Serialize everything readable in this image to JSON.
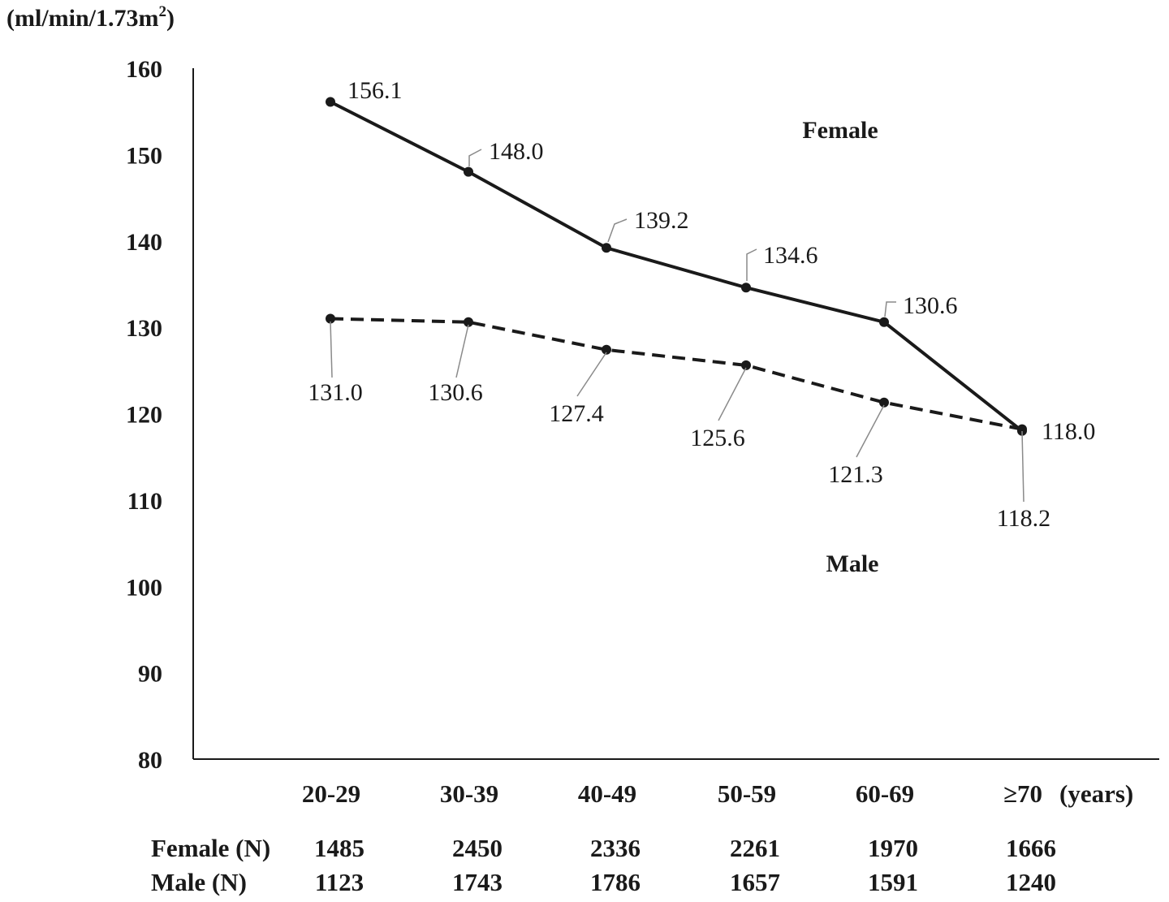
{
  "chart_data": {
    "type": "line",
    "ylabel": "(ml/min/1.73m",
    "ylabel_sup": "2",
    "ylabel_close": ")",
    "xunit": "(years)",
    "ylim": [
      80,
      160
    ],
    "yticks": [
      "80",
      "90",
      "100",
      "110",
      "120",
      "130",
      "140",
      "150",
      "160"
    ],
    "categories": [
      "20-29",
      "30-39",
      "40-49",
      "50-59",
      "60-69",
      "≥70"
    ],
    "grid": false,
    "series": [
      {
        "name": "Female",
        "style": "solid",
        "values": [
          156.1,
          148.0,
          139.2,
          134.6,
          130.6,
          118.0
        ],
        "labels": [
          "156.1",
          "148.0",
          "139.2",
          "134.6",
          "130.6",
          "118.0"
        ]
      },
      {
        "name": "Male",
        "style": "dashed",
        "values": [
          131.0,
          130.6,
          127.4,
          125.6,
          121.3,
          118.2
        ],
        "labels": [
          "131.0",
          "130.6",
          "127.4",
          "125.6",
          "121.3",
          "118.2"
        ]
      }
    ],
    "counts_table": [
      {
        "label": "Female (N)",
        "values": [
          "1485",
          "2450",
          "2336",
          "2261",
          "1970",
          "1666"
        ]
      },
      {
        "label": "Male (N)",
        "values": [
          "1123",
          "1743",
          "1786",
          "1657",
          "1591",
          "1240"
        ]
      }
    ],
    "colors": {
      "line": "#1a1a1a",
      "leader": "#8a8a8a"
    }
  }
}
